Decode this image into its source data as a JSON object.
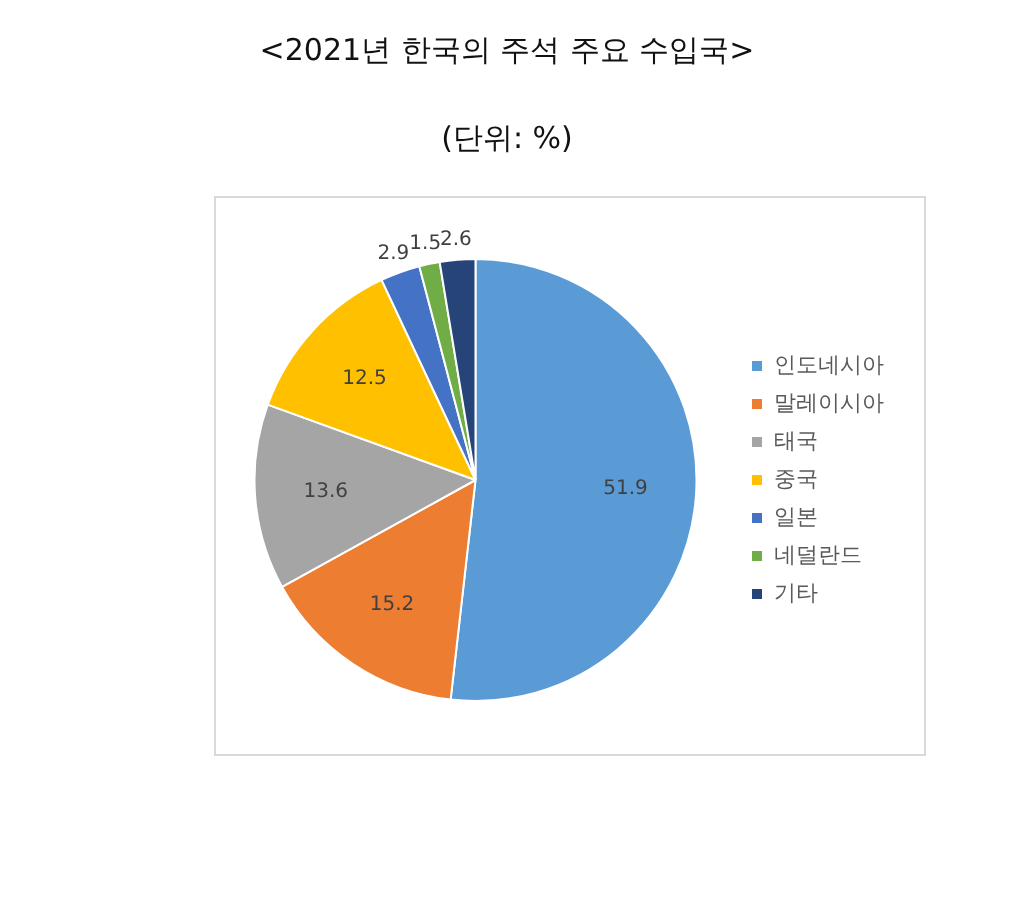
{
  "chart_data": {
    "type": "pie",
    "title": "<2021년 한국의 주석 주요 수입국>",
    "subtitle": "(단위: %)",
    "categories": [
      "인도네시아",
      "말레이시아",
      "태국",
      "중국",
      "일본",
      "네덜란드",
      "기타"
    ],
    "values": [
      51.9,
      15.2,
      13.6,
      12.5,
      2.9,
      1.5,
      2.6
    ],
    "colors": [
      "#5b9bd5",
      "#ed7d31",
      "#a5a5a5",
      "#ffc000",
      "#4472c4",
      "#70ad47",
      "#264478"
    ],
    "data_labels": true,
    "legend": "right"
  }
}
